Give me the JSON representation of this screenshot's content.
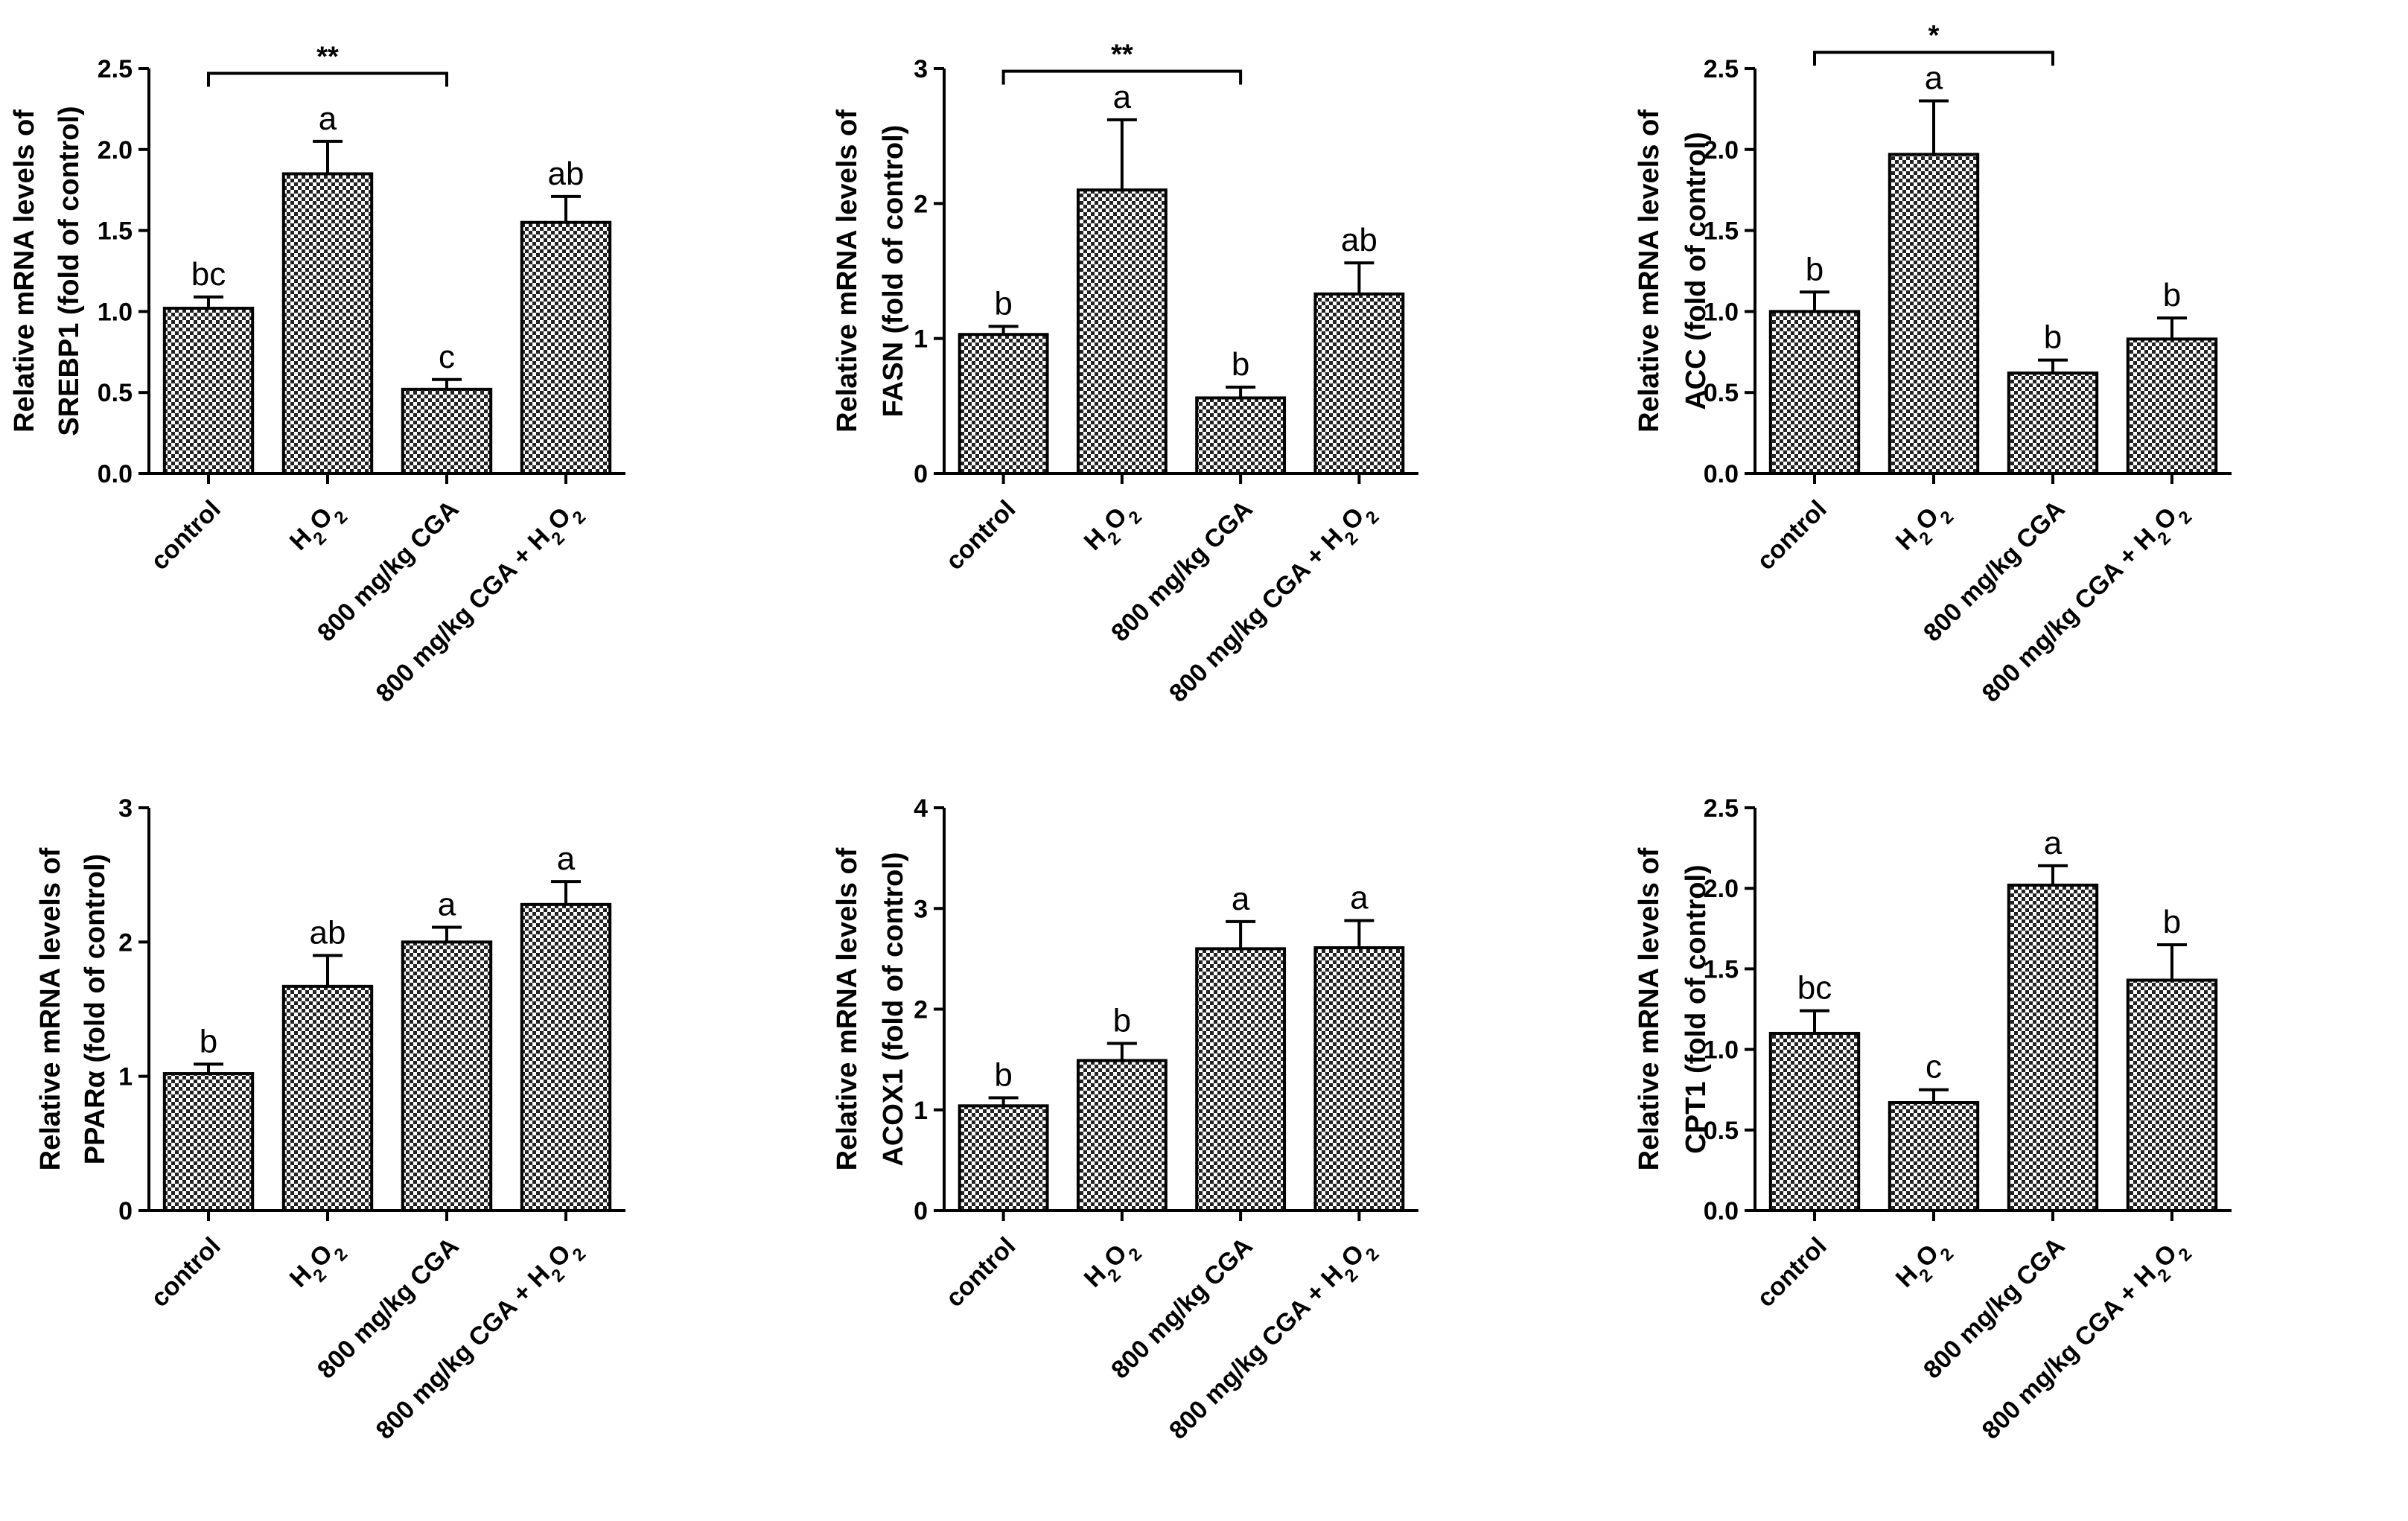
{
  "chart_data": [
    {
      "type": "bar",
      "title": "",
      "ylabel_lines": [
        "Relative mRNA levels of",
        "SREBP1 (fold of control)"
      ],
      "ylim": [
        0,
        2.5
      ],
      "yticks": [
        "0.0",
        "0.5",
        "1.0",
        "1.5",
        "2.0",
        "2.5"
      ],
      "ytick_values": [
        0,
        0.5,
        1.0,
        1.5,
        2.0,
        2.5
      ],
      "categories": [
        "control",
        "H2O2",
        "800 mg/kg CGA",
        "800 mg/kg CGA + H2O2"
      ],
      "values": [
        1.02,
        1.85,
        0.52,
        1.55
      ],
      "errors": [
        0.07,
        0.2,
        0.06,
        0.16
      ],
      "significance_letters": [
        "bc",
        "a",
        "c",
        "ab"
      ],
      "comparison": {
        "from": 0,
        "to": 2,
        "label": "**",
        "level": 2.47
      }
    },
    {
      "type": "bar",
      "title": "",
      "ylabel_lines": [
        "Relative mRNA levels of",
        "FASN (fold of control)"
      ],
      "ylim": [
        0,
        3
      ],
      "yticks": [
        "0",
        "1",
        "2",
        "3"
      ],
      "ytick_values": [
        0,
        1,
        2,
        3
      ],
      "categories": [
        "control",
        "H2O2",
        "800 mg/kg CGA",
        "800 mg/kg CGA + H2O2"
      ],
      "values": [
        1.03,
        2.1,
        0.56,
        1.33
      ],
      "errors": [
        0.06,
        0.52,
        0.08,
        0.23
      ],
      "significance_letters": [
        "b",
        "a",
        "b",
        "ab"
      ],
      "comparison": {
        "from": 0,
        "to": 2,
        "label": "**",
        "level": 2.98
      }
    },
    {
      "type": "bar",
      "title": "",
      "ylabel_lines": [
        "Relative mRNA levels of",
        "ACC (fold of control)"
      ],
      "ylim": [
        0,
        2.5
      ],
      "yticks": [
        "0.0",
        "0.5",
        "1.0",
        "1.5",
        "2.0",
        "2.5"
      ],
      "ytick_values": [
        0,
        0.5,
        1.0,
        1.5,
        2.0,
        2.5
      ],
      "categories": [
        "control",
        "H2O2",
        "800 mg/kg CGA",
        "800 mg/kg CGA + H2O2"
      ],
      "values": [
        1.0,
        1.97,
        0.62,
        0.83
      ],
      "errors": [
        0.12,
        0.33,
        0.08,
        0.13
      ],
      "significance_letters": [
        "b",
        "a",
        "b",
        "b"
      ],
      "comparison": {
        "from": 0,
        "to": 2,
        "label": "*",
        "level": 2.6
      }
    },
    {
      "type": "bar",
      "title": "",
      "ylabel_lines": [
        "Relative mRNA levels of",
        "PPARα  (fold of control)"
      ],
      "ylim": [
        0,
        3
      ],
      "yticks": [
        "0",
        "1",
        "2",
        "3"
      ],
      "ytick_values": [
        0,
        1,
        2,
        3
      ],
      "categories": [
        "control",
        "H2O2",
        "800 mg/kg CGA",
        "800 mg/kg CGA + H2O2"
      ],
      "values": [
        1.02,
        1.67,
        2.0,
        2.28
      ],
      "errors": [
        0.07,
        0.23,
        0.11,
        0.17
      ],
      "significance_letters": [
        "b",
        "ab",
        "a",
        "a"
      ],
      "comparison": null
    },
    {
      "type": "bar",
      "title": "",
      "ylabel_lines": [
        "Relative mRNA levels of",
        "ACOX1 (fold of control)"
      ],
      "ylim": [
        0,
        4
      ],
      "yticks": [
        "0",
        "1",
        "2",
        "3",
        "4"
      ],
      "ytick_values": [
        0,
        1,
        2,
        3,
        4
      ],
      "categories": [
        "control",
        "H2O2",
        "800 mg/kg CGA",
        "800 mg/kg CGA + H2O2"
      ],
      "values": [
        1.04,
        1.49,
        2.6,
        2.61
      ],
      "errors": [
        0.08,
        0.17,
        0.27,
        0.27
      ],
      "significance_letters": [
        "b",
        "b",
        "a",
        "a"
      ],
      "comparison": null
    },
    {
      "type": "bar",
      "title": "",
      "ylabel_lines": [
        "Relative mRNA levels of",
        "CPT1 (fold of control)"
      ],
      "ylim": [
        0,
        2.5
      ],
      "yticks": [
        "0.0",
        "0.5",
        "1.0",
        "1.5",
        "2.0",
        "2.5"
      ],
      "ytick_values": [
        0,
        0.5,
        1.0,
        1.5,
        2.0,
        2.5
      ],
      "categories": [
        "control",
        "H2O2",
        "800 mg/kg CGA",
        "800 mg/kg CGA + H2O2"
      ],
      "values": [
        1.1,
        0.67,
        2.02,
        1.43
      ],
      "errors": [
        0.14,
        0.08,
        0.12,
        0.22
      ],
      "significance_letters": [
        "bc",
        "c",
        "a",
        "b"
      ],
      "comparison": null
    }
  ]
}
